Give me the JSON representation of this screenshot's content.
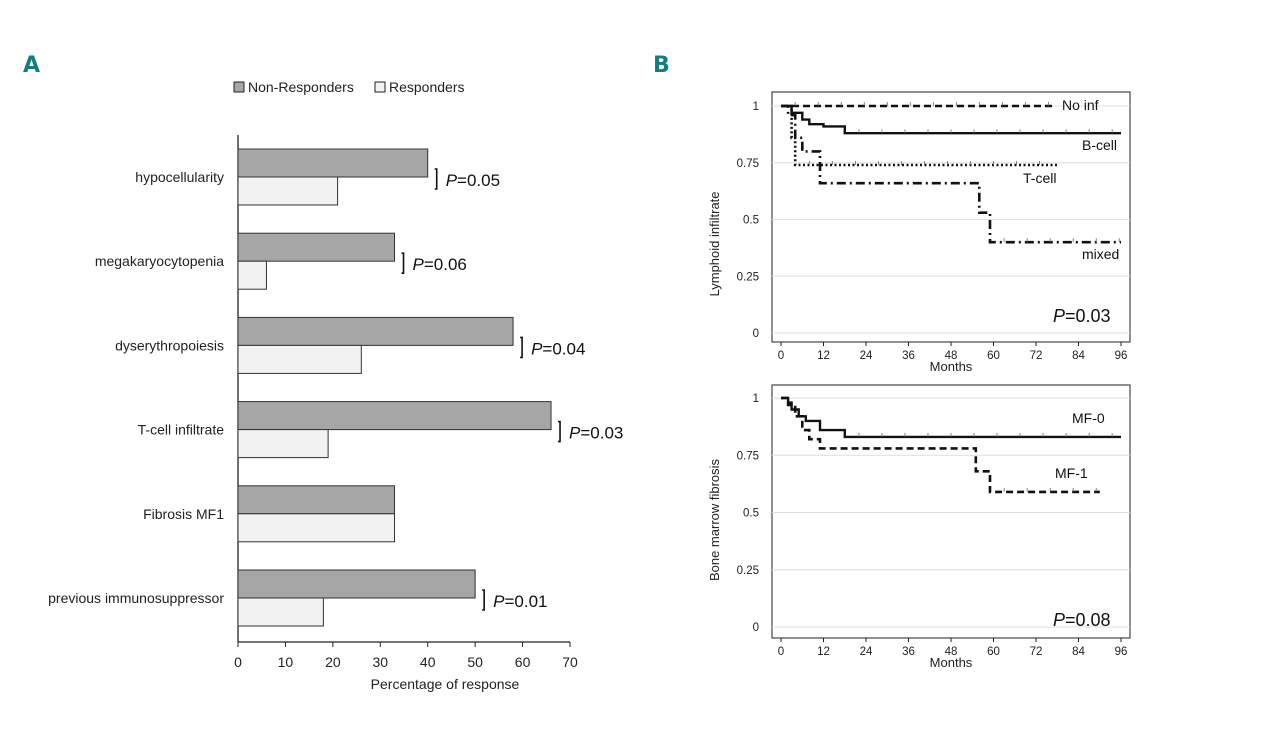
{
  "panels": {
    "a_letter": "A",
    "b_letter": "B"
  },
  "chart_data": [
    {
      "type": "bar",
      "orientation": "horizontal",
      "categories": [
        "hypocellularity",
        "megakaryocytopenia",
        "dyserythropoiesis",
        "T-cell infiltrate",
        "Fibrosis MF1",
        "previous immunosuppressor"
      ],
      "series": [
        {
          "name": "Non-Responders",
          "color": "#a6a6a6",
          "values": [
            40,
            33,
            58,
            66,
            33,
            50
          ]
        },
        {
          "name": "Responders",
          "color": "#f2f2f2",
          "values": [
            21,
            6,
            26,
            19,
            33,
            18
          ]
        }
      ],
      "pvalues": [
        {
          "italic": "P",
          "text": "=0.05"
        },
        {
          "italic": "P",
          "text": "=0.06"
        },
        {
          "italic": "P",
          "text": "=0.04"
        },
        {
          "italic": "P",
          "text": "=0.03"
        },
        null,
        {
          "italic": "P",
          "text": "=0.01"
        }
      ],
      "xlabel": "Percentage of response",
      "xlim": [
        0,
        70
      ],
      "xticks": [
        "0",
        "10",
        "20",
        "30",
        "40",
        "50",
        "60",
        "70"
      ]
    },
    {
      "type": "line",
      "subtype": "kaplan-meier",
      "ylabel": "Lymphoid infiltrate",
      "xlabel": "Months",
      "xlim": [
        0,
        96
      ],
      "ylim": [
        0,
        1
      ],
      "xticks": [
        "0",
        "12",
        "24",
        "36",
        "48",
        "60",
        "72",
        "84",
        "96"
      ],
      "yticks": [
        "0",
        "0.25",
        "0.5",
        "0.75",
        "1"
      ],
      "pvalue": {
        "italic": "P",
        "text": "=0.03"
      },
      "series": [
        {
          "name": "No inf",
          "style": "dashed",
          "points": [
            [
              0,
              1.0
            ],
            [
              77,
              1.0
            ]
          ]
        },
        {
          "name": "B-cell",
          "style": "solid",
          "points": [
            [
              0,
              1.0
            ],
            [
              3,
              1.0
            ],
            [
              3,
              0.97
            ],
            [
              6,
              0.97
            ],
            [
              6,
              0.94
            ],
            [
              8,
              0.94
            ],
            [
              8,
              0.92
            ],
            [
              12,
              0.92
            ],
            [
              12,
              0.91
            ],
            [
              18,
              0.91
            ],
            [
              18,
              0.88
            ],
            [
              96,
              0.88
            ]
          ]
        },
        {
          "name": "T-cell",
          "style": "dotted",
          "points": [
            [
              0,
              1.0
            ],
            [
              3,
              1.0
            ],
            [
              3,
              0.86
            ],
            [
              4,
              0.86
            ],
            [
              4,
              0.74
            ],
            [
              78,
              0.74
            ]
          ]
        },
        {
          "name": "mixed",
          "style": "dashdot",
          "points": [
            [
              0,
              1.0
            ],
            [
              2,
              1.0
            ],
            [
              2,
              0.96
            ],
            [
              4,
              0.96
            ],
            [
              4,
              0.86
            ],
            [
              6,
              0.86
            ],
            [
              6,
              0.8
            ],
            [
              11,
              0.8
            ],
            [
              11,
              0.66
            ],
            [
              56,
              0.66
            ],
            [
              56,
              0.53
            ],
            [
              59,
              0.53
            ],
            [
              59,
              0.4
            ],
            [
              96,
              0.4
            ]
          ]
        }
      ],
      "labels": [
        "No inf",
        "B-cell",
        "T-cell",
        "mixed"
      ]
    },
    {
      "type": "line",
      "subtype": "kaplan-meier",
      "ylabel": "Bone marrow fibrosis",
      "xlabel": "Months",
      "xlim": [
        0,
        96
      ],
      "ylim": [
        0,
        1
      ],
      "xticks": [
        "0",
        "12",
        "24",
        "36",
        "48",
        "60",
        "72",
        "84",
        "96"
      ],
      "yticks": [
        "0",
        "0.25",
        "0.5",
        "0.75",
        "1"
      ],
      "pvalue": {
        "italic": "P",
        "text": "=0.08"
      },
      "series": [
        {
          "name": "MF-0",
          "style": "solid",
          "points": [
            [
              0,
              1.0
            ],
            [
              2,
              1.0
            ],
            [
              2,
              0.98
            ],
            [
              3,
              0.98
            ],
            [
              3,
              0.95
            ],
            [
              5,
              0.95
            ],
            [
              5,
              0.92
            ],
            [
              7,
              0.92
            ],
            [
              7,
              0.9
            ],
            [
              11,
              0.9
            ],
            [
              11,
              0.86
            ],
            [
              18,
              0.86
            ],
            [
              18,
              0.83
            ],
            [
              96,
              0.83
            ]
          ]
        },
        {
          "name": "MF-1",
          "style": "dashed",
          "points": [
            [
              0,
              1.0
            ],
            [
              2,
              1.0
            ],
            [
              2,
              0.97
            ],
            [
              4,
              0.97
            ],
            [
              4,
              0.92
            ],
            [
              6,
              0.92
            ],
            [
              6,
              0.86
            ],
            [
              8,
              0.86
            ],
            [
              8,
              0.82
            ],
            [
              11,
              0.82
            ],
            [
              11,
              0.78
            ],
            [
              55,
              0.78
            ],
            [
              55,
              0.68
            ],
            [
              59,
              0.68
            ],
            [
              59,
              0.59
            ],
            [
              90,
              0.59
            ]
          ]
        }
      ],
      "labels": [
        "MF-0",
        "MF-1"
      ]
    }
  ]
}
